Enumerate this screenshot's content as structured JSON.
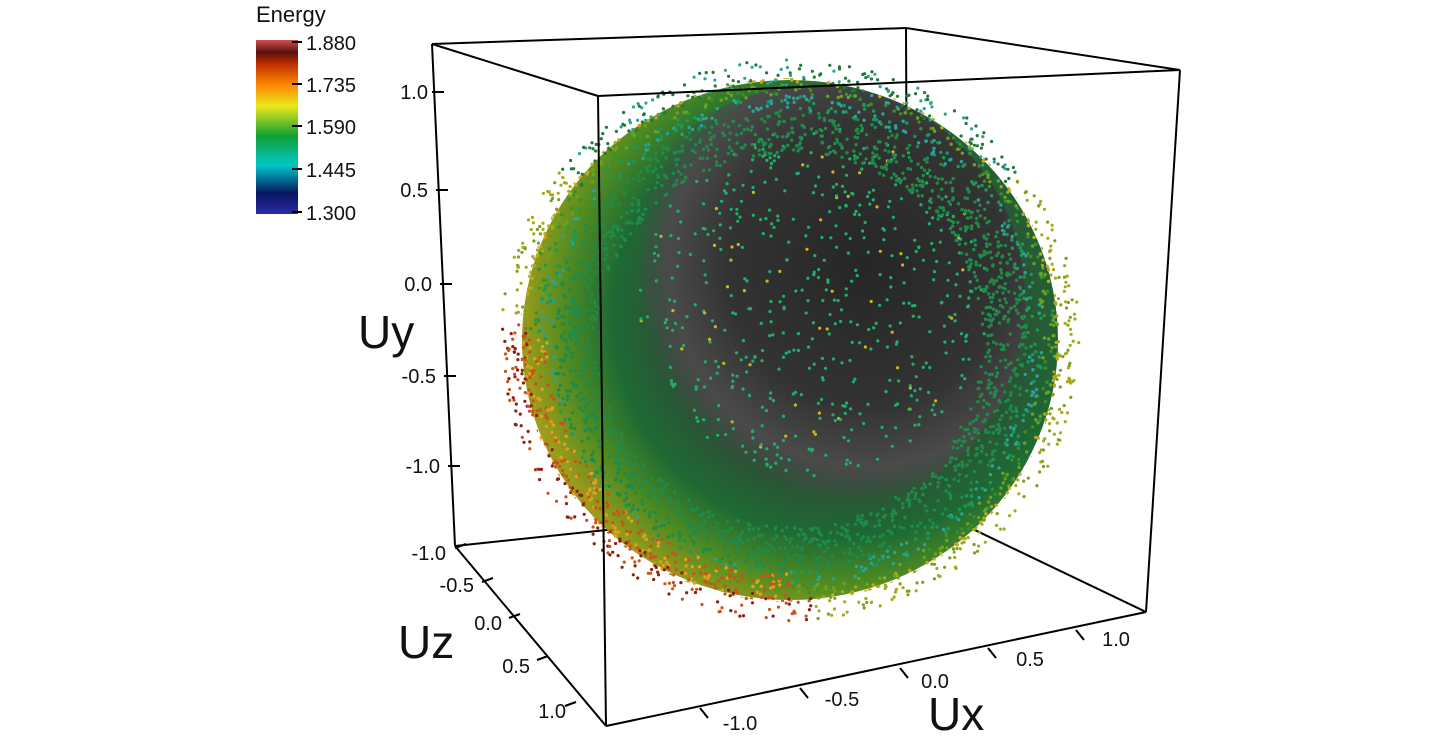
{
  "chart_data": {
    "type": "scatter",
    "dimensions": 3,
    "title": "",
    "xlabel": "Ux",
    "ylabel": "Uy",
    "zlabel": "Uz",
    "xlim": [
      -1.2,
      1.2
    ],
    "ylim": [
      -1.3,
      1.3
    ],
    "zlim": [
      -1.2,
      1.2
    ],
    "x_ticks": [
      "-1.0",
      "-0.5",
      "0.0",
      "0.5",
      "1.0"
    ],
    "y_ticks": [
      "1.0",
      "0.5",
      "0.0",
      "-0.5",
      "-1.0"
    ],
    "z_ticks": [
      "-1.0",
      "-0.5",
      "0.0",
      "0.5",
      "1.0"
    ],
    "shape": "sphere",
    "radius": 1.0,
    "colorbar": {
      "title": "Energy",
      "min": 1.3,
      "max": 1.88,
      "ticks": [
        "1.880",
        "1.735",
        "1.590",
        "1.445",
        "1.300"
      ],
      "colormap": [
        "#2b2ba8",
        "#071560",
        "#00c8c8",
        "#12a030",
        "#e8e81a",
        "#ff8a00",
        "#c03000",
        "#5a0f0f",
        "#d25050"
      ]
    },
    "interior_color": "#3a3a3a"
  }
}
